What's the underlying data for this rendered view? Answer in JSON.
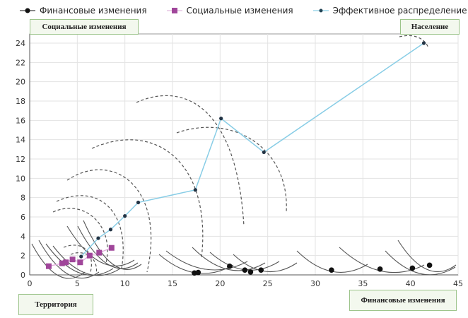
{
  "legend": [
    {
      "label": "Финансовые изменения",
      "color": "#111111",
      "marker": "circle"
    },
    {
      "label": "Социальные изменения",
      "color": "#a0469a",
      "marker": "square"
    },
    {
      "label": "Эффективное распределение",
      "color": "#6fc3e0",
      "marker": "dot"
    }
  ],
  "annotations": {
    "top_left": "Социальные изменения",
    "top_right": "Население",
    "bottom_left": "Территория",
    "bottom_right": "Финансовые изменения"
  },
  "chart_data": {
    "type": "scatter",
    "xlim": [
      0,
      45
    ],
    "ylim": [
      0,
      25
    ],
    "x_ticks": [
      "0",
      "5",
      "10",
      "15",
      "20",
      "25",
      "30",
      "35",
      "40",
      "45"
    ],
    "y_ticks": [
      "0",
      "2",
      "4",
      "6",
      "8",
      "10",
      "12",
      "14",
      "16",
      "18",
      "20",
      "22",
      "24"
    ],
    "grid": true,
    "legend_position": "top",
    "series": [
      {
        "name": "Финансовые изменения",
        "color": "#111111",
        "points": [
          [
            17.3,
            0.2
          ],
          [
            17.7,
            0.25
          ],
          [
            21.0,
            0.9
          ],
          [
            22.6,
            0.5
          ],
          [
            23.2,
            0.3
          ],
          [
            24.3,
            0.5
          ],
          [
            31.7,
            0.5
          ],
          [
            36.8,
            0.6
          ],
          [
            40.2,
            0.7
          ],
          [
            42.0,
            1.0
          ]
        ]
      },
      {
        "name": "Социальные изменения",
        "color": "#a0469a",
        "points": [
          [
            2.0,
            0.9
          ],
          [
            3.4,
            1.2
          ],
          [
            3.8,
            1.3
          ],
          [
            4.5,
            1.6
          ],
          [
            5.3,
            1.3
          ],
          [
            6.3,
            2.0
          ],
          [
            7.3,
            2.3
          ],
          [
            8.6,
            2.8
          ]
        ]
      },
      {
        "name": "Эффективное распределение",
        "color": "#6fc3e0",
        "points": [
          [
            5.4,
            1.9
          ],
          [
            7.2,
            3.8
          ],
          [
            8.5,
            4.7
          ],
          [
            10.0,
            6.1
          ],
          [
            11.4,
            7.5
          ],
          [
            17.4,
            8.8
          ],
          [
            20.1,
            16.2
          ],
          [
            24.6,
            12.7
          ],
          [
            41.4,
            24.0
          ]
        ]
      }
    ]
  }
}
